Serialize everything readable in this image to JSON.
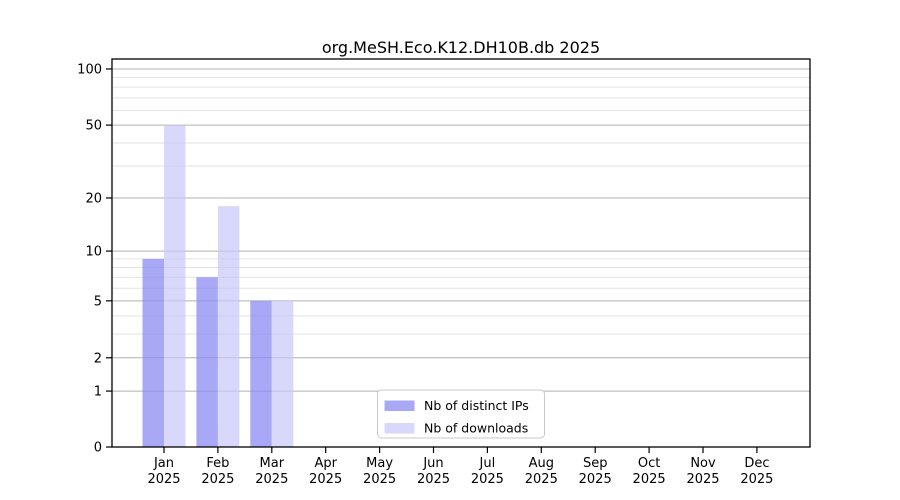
{
  "chart_data": {
    "type": "bar",
    "title": "org.MeSH.Eco.K12.DH10B.db 2025",
    "categories": [
      "Jan",
      "Feb",
      "Mar",
      "Apr",
      "May",
      "Jun",
      "Jul",
      "Aug",
      "Sep",
      "Oct",
      "Nov",
      "Dec"
    ],
    "year_label": "2025",
    "series": [
      {
        "name": "Nb of distinct IPs",
        "color": "#a8a8f6",
        "values": [
          9,
          7,
          5,
          0,
          0,
          0,
          0,
          0,
          0,
          0,
          0,
          0
        ]
      },
      {
        "name": "Nb of downloads",
        "color": "#d8d8fa",
        "values": [
          50,
          18,
          5,
          0,
          0,
          0,
          0,
          0,
          0,
          0,
          0,
          0
        ]
      }
    ],
    "y_axis": {
      "scale": "log10(value+1)",
      "major_ticks": [
        100,
        50,
        20,
        10,
        5,
        2,
        1,
        0
      ],
      "minor_gridlines": [
        90,
        80,
        70,
        60,
        40,
        30,
        9,
        8,
        7,
        6,
        4,
        3
      ],
      "range": [
        0,
        100
      ]
    },
    "x_axis": {
      "label_line2": "2025"
    },
    "legend": {
      "position": "bottom-center",
      "entries": [
        "Nb of distinct IPs",
        "Nb of downloads"
      ]
    },
    "grid": true,
    "colors": {
      "major_grid": "#c6c6c6",
      "minor_grid": "#ededed",
      "spine": "#000000",
      "background": "#ffffff"
    }
  }
}
